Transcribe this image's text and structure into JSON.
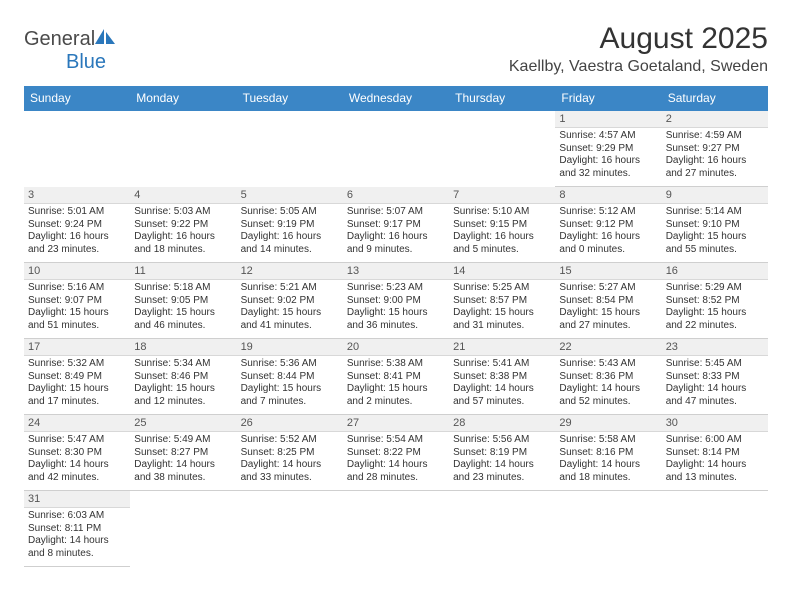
{
  "logo": {
    "word1": "General",
    "word2": "Blue"
  },
  "title": "August 2025",
  "location": "Kaellby, Vaestra Goetaland, Sweden",
  "colors": {
    "headerBlue": "#3b86c6",
    "rowTopBorder": "#3b86c6",
    "dayNumBg": "#f0f0f0",
    "textDark": "#333333"
  },
  "weekdays": [
    "Sunday",
    "Monday",
    "Tuesday",
    "Wednesday",
    "Thursday",
    "Friday",
    "Saturday"
  ],
  "weeks": [
    [
      null,
      null,
      null,
      null,
      null,
      {
        "n": "1",
        "sr": "Sunrise: 4:57 AM",
        "ss": "Sunset: 9:29 PM",
        "d1": "Daylight: 16 hours",
        "d2": "and 32 minutes."
      },
      {
        "n": "2",
        "sr": "Sunrise: 4:59 AM",
        "ss": "Sunset: 9:27 PM",
        "d1": "Daylight: 16 hours",
        "d2": "and 27 minutes."
      }
    ],
    [
      {
        "n": "3",
        "sr": "Sunrise: 5:01 AM",
        "ss": "Sunset: 9:24 PM",
        "d1": "Daylight: 16 hours",
        "d2": "and 23 minutes."
      },
      {
        "n": "4",
        "sr": "Sunrise: 5:03 AM",
        "ss": "Sunset: 9:22 PM",
        "d1": "Daylight: 16 hours",
        "d2": "and 18 minutes."
      },
      {
        "n": "5",
        "sr": "Sunrise: 5:05 AM",
        "ss": "Sunset: 9:19 PM",
        "d1": "Daylight: 16 hours",
        "d2": "and 14 minutes."
      },
      {
        "n": "6",
        "sr": "Sunrise: 5:07 AM",
        "ss": "Sunset: 9:17 PM",
        "d1": "Daylight: 16 hours",
        "d2": "and 9 minutes."
      },
      {
        "n": "7",
        "sr": "Sunrise: 5:10 AM",
        "ss": "Sunset: 9:15 PM",
        "d1": "Daylight: 16 hours",
        "d2": "and 5 minutes."
      },
      {
        "n": "8",
        "sr": "Sunrise: 5:12 AM",
        "ss": "Sunset: 9:12 PM",
        "d1": "Daylight: 16 hours",
        "d2": "and 0 minutes."
      },
      {
        "n": "9",
        "sr": "Sunrise: 5:14 AM",
        "ss": "Sunset: 9:10 PM",
        "d1": "Daylight: 15 hours",
        "d2": "and 55 minutes."
      }
    ],
    [
      {
        "n": "10",
        "sr": "Sunrise: 5:16 AM",
        "ss": "Sunset: 9:07 PM",
        "d1": "Daylight: 15 hours",
        "d2": "and 51 minutes."
      },
      {
        "n": "11",
        "sr": "Sunrise: 5:18 AM",
        "ss": "Sunset: 9:05 PM",
        "d1": "Daylight: 15 hours",
        "d2": "and 46 minutes."
      },
      {
        "n": "12",
        "sr": "Sunrise: 5:21 AM",
        "ss": "Sunset: 9:02 PM",
        "d1": "Daylight: 15 hours",
        "d2": "and 41 minutes."
      },
      {
        "n": "13",
        "sr": "Sunrise: 5:23 AM",
        "ss": "Sunset: 9:00 PM",
        "d1": "Daylight: 15 hours",
        "d2": "and 36 minutes."
      },
      {
        "n": "14",
        "sr": "Sunrise: 5:25 AM",
        "ss": "Sunset: 8:57 PM",
        "d1": "Daylight: 15 hours",
        "d2": "and 31 minutes."
      },
      {
        "n": "15",
        "sr": "Sunrise: 5:27 AM",
        "ss": "Sunset: 8:54 PM",
        "d1": "Daylight: 15 hours",
        "d2": "and 27 minutes."
      },
      {
        "n": "16",
        "sr": "Sunrise: 5:29 AM",
        "ss": "Sunset: 8:52 PM",
        "d1": "Daylight: 15 hours",
        "d2": "and 22 minutes."
      }
    ],
    [
      {
        "n": "17",
        "sr": "Sunrise: 5:32 AM",
        "ss": "Sunset: 8:49 PM",
        "d1": "Daylight: 15 hours",
        "d2": "and 17 minutes."
      },
      {
        "n": "18",
        "sr": "Sunrise: 5:34 AM",
        "ss": "Sunset: 8:46 PM",
        "d1": "Daylight: 15 hours",
        "d2": "and 12 minutes."
      },
      {
        "n": "19",
        "sr": "Sunrise: 5:36 AM",
        "ss": "Sunset: 8:44 PM",
        "d1": "Daylight: 15 hours",
        "d2": "and 7 minutes."
      },
      {
        "n": "20",
        "sr": "Sunrise: 5:38 AM",
        "ss": "Sunset: 8:41 PM",
        "d1": "Daylight: 15 hours",
        "d2": "and 2 minutes."
      },
      {
        "n": "21",
        "sr": "Sunrise: 5:41 AM",
        "ss": "Sunset: 8:38 PM",
        "d1": "Daylight: 14 hours",
        "d2": "and 57 minutes."
      },
      {
        "n": "22",
        "sr": "Sunrise: 5:43 AM",
        "ss": "Sunset: 8:36 PM",
        "d1": "Daylight: 14 hours",
        "d2": "and 52 minutes."
      },
      {
        "n": "23",
        "sr": "Sunrise: 5:45 AM",
        "ss": "Sunset: 8:33 PM",
        "d1": "Daylight: 14 hours",
        "d2": "and 47 minutes."
      }
    ],
    [
      {
        "n": "24",
        "sr": "Sunrise: 5:47 AM",
        "ss": "Sunset: 8:30 PM",
        "d1": "Daylight: 14 hours",
        "d2": "and 42 minutes."
      },
      {
        "n": "25",
        "sr": "Sunrise: 5:49 AM",
        "ss": "Sunset: 8:27 PM",
        "d1": "Daylight: 14 hours",
        "d2": "and 38 minutes."
      },
      {
        "n": "26",
        "sr": "Sunrise: 5:52 AM",
        "ss": "Sunset: 8:25 PM",
        "d1": "Daylight: 14 hours",
        "d2": "and 33 minutes."
      },
      {
        "n": "27",
        "sr": "Sunrise: 5:54 AM",
        "ss": "Sunset: 8:22 PM",
        "d1": "Daylight: 14 hours",
        "d2": "and 28 minutes."
      },
      {
        "n": "28",
        "sr": "Sunrise: 5:56 AM",
        "ss": "Sunset: 8:19 PM",
        "d1": "Daylight: 14 hours",
        "d2": "and 23 minutes."
      },
      {
        "n": "29",
        "sr": "Sunrise: 5:58 AM",
        "ss": "Sunset: 8:16 PM",
        "d1": "Daylight: 14 hours",
        "d2": "and 18 minutes."
      },
      {
        "n": "30",
        "sr": "Sunrise: 6:00 AM",
        "ss": "Sunset: 8:14 PM",
        "d1": "Daylight: 14 hours",
        "d2": "and 13 minutes."
      }
    ],
    [
      {
        "n": "31",
        "sr": "Sunrise: 6:03 AM",
        "ss": "Sunset: 8:11 PM",
        "d1": "Daylight: 14 hours",
        "d2": "and 8 minutes."
      },
      null,
      null,
      null,
      null,
      null,
      null
    ]
  ]
}
